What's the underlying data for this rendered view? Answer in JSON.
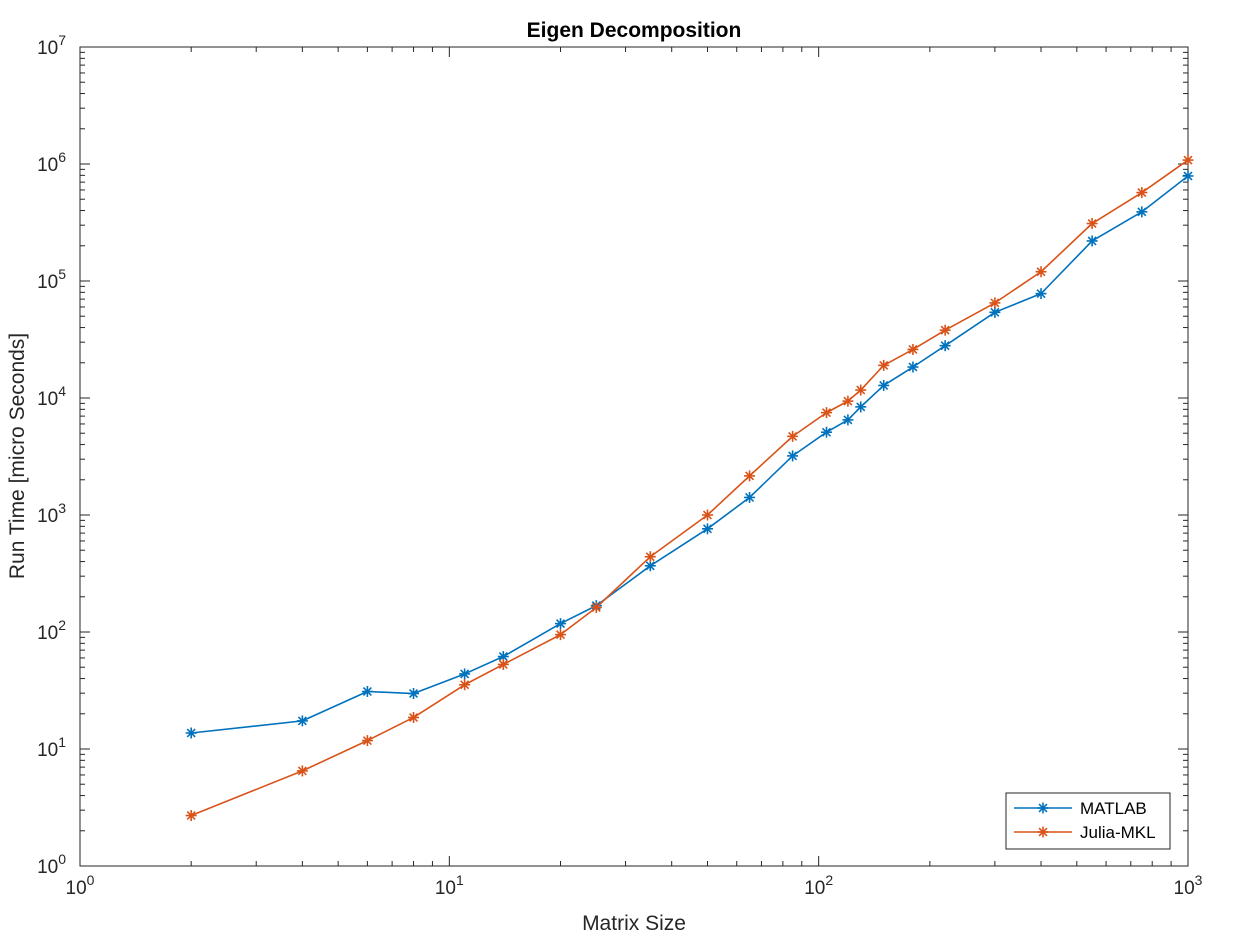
{
  "chart_data": {
    "type": "line",
    "title": "Eigen Decomposition",
    "xlabel": "Matrix Size",
    "ylabel": "Run Time  [micro Seconds]",
    "xscale": "log",
    "yscale": "log",
    "xlim": [
      1,
      1000
    ],
    "ylim": [
      1,
      10000000
    ],
    "x_ticks": [
      {
        "base": "10",
        "exp": "0",
        "value": 1
      },
      {
        "base": "10",
        "exp": "1",
        "value": 10
      },
      {
        "base": "10",
        "exp": "2",
        "value": 100
      },
      {
        "base": "10",
        "exp": "3",
        "value": 1000
      }
    ],
    "y_ticks": [
      {
        "base": "10",
        "exp": "0",
        "value": 1
      },
      {
        "base": "10",
        "exp": "1",
        "value": 10
      },
      {
        "base": "10",
        "exp": "2",
        "value": 100
      },
      {
        "base": "10",
        "exp": "3",
        "value": 1000
      },
      {
        "base": "10",
        "exp": "4",
        "value": 10000
      },
      {
        "base": "10",
        "exp": "5",
        "value": 100000
      },
      {
        "base": "10",
        "exp": "6",
        "value": 1000000
      },
      {
        "base": "10",
        "exp": "7",
        "value": 10000000
      }
    ],
    "grid": false,
    "legend_position": "bottom-right",
    "marker": "asterisk",
    "series": [
      {
        "name": "MATLAB",
        "color": "#0072BD",
        "x": [
          2,
          4,
          6,
          8,
          11,
          14,
          20,
          25,
          35,
          50,
          65,
          85,
          105,
          120,
          130,
          150,
          180,
          220,
          300,
          400,
          550,
          750,
          1000
        ],
        "y": [
          13.7,
          17.4,
          31.0,
          29.8,
          43.8,
          61.7,
          118,
          168,
          368,
          762,
          1413,
          3200,
          5100,
          6500,
          8400,
          12800,
          18400,
          28000,
          54000,
          78000,
          220000,
          390000,
          790000
        ]
      },
      {
        "name": "Julia-MKL",
        "color": "#D95319",
        "x": [
          2,
          4,
          6,
          8,
          11,
          14,
          20,
          25,
          35,
          50,
          65,
          85,
          105,
          120,
          130,
          150,
          180,
          220,
          300,
          400,
          550,
          750,
          1000
        ],
        "y": [
          2.7,
          6.5,
          11.8,
          18.6,
          35.4,
          52.8,
          95,
          162,
          440,
          1000,
          2160,
          4700,
          7500,
          9400,
          11700,
          19000,
          26000,
          38000,
          65000,
          120000,
          310000,
          570000,
          1080000
        ]
      }
    ]
  }
}
